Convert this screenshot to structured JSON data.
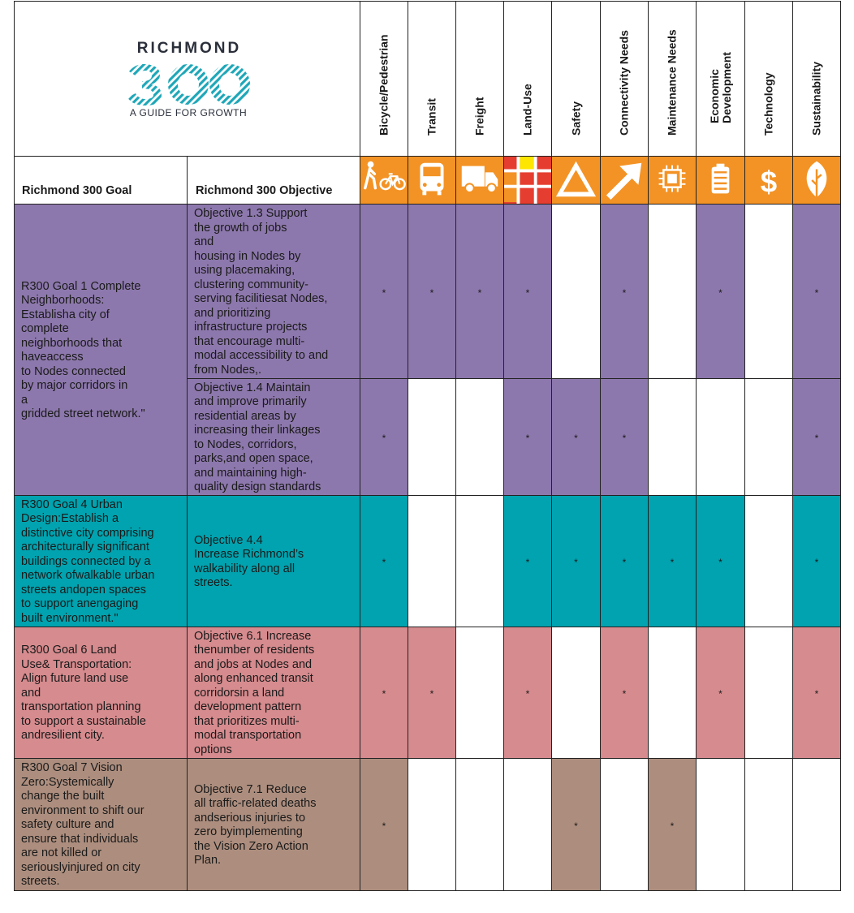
{
  "logo": {
    "title": "RICHMOND",
    "number": "300",
    "subtitle": "A GUIDE FOR GROWTH"
  },
  "header": {
    "goal_col": "Richmond 300 Goal",
    "objective_col": "Richmond 300 Objective"
  },
  "criteria": [
    {
      "label": "Bicycle/Pedestrian",
      "icon": "bicycle-pedestrian-icon"
    },
    {
      "label": "Transit",
      "icon": "bus-icon"
    },
    {
      "label": "Freight",
      "icon": "truck-icon"
    },
    {
      "label": "Land-Use",
      "icon": "land-use-grid-icon"
    },
    {
      "label": "Safety",
      "icon": "warning-triangle-icon"
    },
    {
      "label": "Connectivity Needs",
      "icon": "arrow-up-right-icon"
    },
    {
      "label": "Maintenance Needs",
      "icon": "chip-icon"
    },
    {
      "label": "Economic\nDevelopment",
      "icon": "battery-icon"
    },
    {
      "label": "Technology",
      "icon": "dollar-icon"
    },
    {
      "label": "Sustainability",
      "icon": "leaf-icon"
    }
  ],
  "colors": {
    "goal1": "#8d78ad",
    "goal4": "#00a3af",
    "goal6": "#d68b8e",
    "goal7": "#ad8e7e",
    "icon_bg": "#f39325"
  },
  "goals": [
    {
      "text": "R300 Goal 1 Complete\nNeighborhoods:\nEstablisha city of\ncomplete\nneighborhoods that\nhaveaccess\nto Nodes connected\nby major corridors in\na\ngridded street network.\"",
      "color": "goal1",
      "objectives": [
        {
          "text": "Objective 1.3 Support\nthe growth of jobs\nand\nhousing in Nodes by\nusing placemaking,\nclustering community-\nserving facilitiesat Nodes,\nand prioritizing\ninfrastructure projects\nthat encourage multi-\nmodal accessibility to and\nfrom Nodes,.",
          "marks": [
            1,
            1,
            1,
            1,
            0,
            1,
            0,
            1,
            0,
            1
          ],
          "mark": "*"
        },
        {
          "text": "Objective 1.4 Maintain\nand improve primarily\nresidential areas by\nincreasing their linkages\nto Nodes, corridors,\nparks,and open space,\nand maintaining high-\nquality design standards",
          "marks": [
            1,
            0,
            0,
            1,
            1,
            1,
            0,
            0,
            0,
            1
          ],
          "mark": "*"
        }
      ]
    },
    {
      "text": "R300 Goal 4 Urban\nDesign:Establish a\ndistinctive city comprising\narchitecturally significant\nbuildings connected by a\nnetwork ofwalkable urban\nstreets andopen spaces\nto support anengaging\nbuilt environment.\"",
      "color": "goal4",
      "objectives": [
        {
          "text": "Objective          4.4\nIncrease  Richmond’s\nwalkability  along    all\nstreets.",
          "marks": [
            1,
            0,
            0,
            1,
            1,
            1,
            1,
            1,
            0,
            1
          ],
          "mark": "*"
        }
      ]
    },
    {
      "text": "R300   Goal  6   Land\nUse& Transportation:\nAlign future  land  use\nand\ntransportation    planning\nto support  a  sustainable\nandresilient city.",
      "color": "goal6",
      "objectives": [
        {
          "text": "Objective 6.1 Increase\nthenumber of residents\nand jobs at Nodes and\nalong enhanced transit\ncorridorsin a land\ndevelopment pattern\nthat prioritizes multi-\nmodal transportation\noptions",
          "marks": [
            1,
            1,
            0,
            1,
            0,
            1,
            0,
            1,
            0,
            1
          ],
          "mark": "*"
        }
      ]
    },
    {
      "text": "R300 Goal 7 Vision\nZero:Systemically\nchange the built\nenvironment to shift our\nsafety culture and\nensure that individuals\nare not killed or\nseriouslyinjured on city\nstreets.",
      "color": "goal7",
      "objectives": [
        {
          "text": "Objective 7.1 Reduce\nall traffic-related deaths\nandserious injuries to\nzero byimplementing\nthe Vision Zero Action\nPlan.",
          "marks": [
            1,
            0,
            0,
            0,
            1,
            0,
            1,
            0,
            0,
            0
          ],
          "mark": "*"
        }
      ]
    }
  ]
}
